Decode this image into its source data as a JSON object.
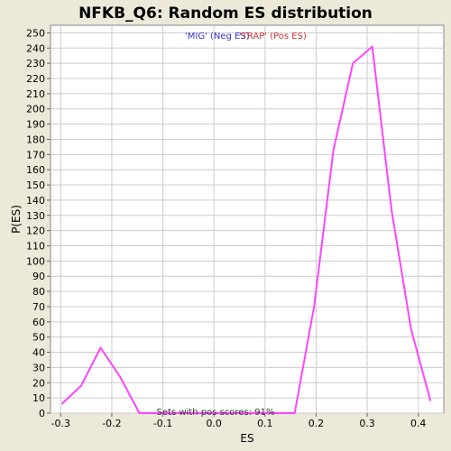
{
  "chart_data": {
    "type": "line",
    "title": "NFKB_Q6: Random ES distribution",
    "xlabel": "ES",
    "ylabel": "P(ES)",
    "xlim": [
      -0.32,
      0.45
    ],
    "ylim": [
      0,
      255
    ],
    "x_ticks": [
      -0.3,
      -0.2,
      -0.1,
      0.0,
      0.1,
      0.2,
      0.3,
      0.4
    ],
    "x_tick_labels": [
      "-0.3",
      "-0.2",
      "-0.1",
      "0.0",
      "0.1",
      "0.2",
      "0.3",
      "0.4"
    ],
    "y_ticks": [
      0,
      10,
      20,
      30,
      40,
      50,
      60,
      70,
      80,
      90,
      100,
      110,
      120,
      130,
      140,
      150,
      160,
      170,
      180,
      190,
      200,
      210,
      220,
      230,
      240,
      250
    ],
    "y_tick_labels": [
      "0",
      "10",
      "20",
      "30",
      "40",
      "50",
      "60",
      "70",
      "80",
      "90",
      "100",
      "110",
      "120",
      "130",
      "140",
      "150",
      "160",
      "170",
      "180",
      "190",
      "200",
      "210",
      "220",
      "230",
      "240",
      "250"
    ],
    "grid": true,
    "series": [
      {
        "color": "#ff44ff",
        "x": [
          -0.298,
          -0.26,
          -0.222,
          -0.184,
          -0.146,
          -0.108,
          -0.07,
          -0.032,
          0.006,
          0.044,
          0.082,
          0.12,
          0.158,
          0.196,
          0.234,
          0.272,
          0.31,
          0.348,
          0.386,
          0.424
        ],
        "y": [
          6,
          18,
          43,
          24,
          0,
          0,
          0,
          0,
          0,
          0,
          0,
          0,
          0,
          70,
          173,
          230,
          241,
          133,
          55,
          8
        ]
      }
    ],
    "legend": [
      {
        "label": "'MIG' (Neg ES)",
        "color": "#3333cc"
      },
      {
        "label": "'TRAP' (Pos ES)",
        "color": "#cc3333"
      }
    ],
    "annotation": "Sets with pos scores: 91%"
  }
}
